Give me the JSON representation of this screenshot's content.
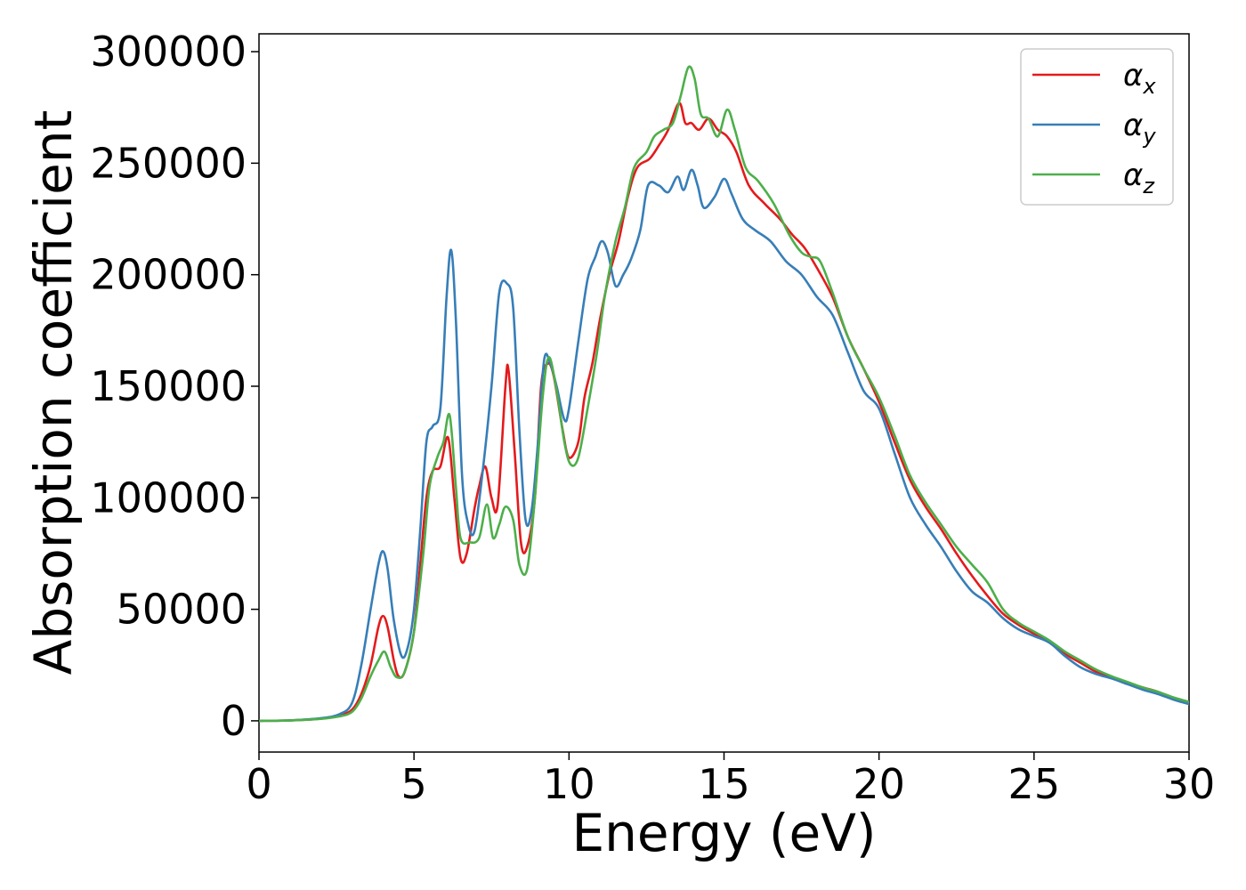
{
  "chart_data": {
    "type": "line",
    "title": "",
    "xlabel": "Energy (eV)",
    "ylabel": "Absorption coefficient",
    "xlim": [
      0,
      30
    ],
    "ylim": [
      -14000,
      308000
    ],
    "x_ticks": [
      0,
      5,
      10,
      15,
      20,
      25,
      30
    ],
    "y_ticks": [
      0,
      50000,
      100000,
      150000,
      200000,
      250000,
      300000
    ],
    "grid": false,
    "legend": "top-right",
    "series": [
      {
        "name": "αx",
        "symbol": "α",
        "subscript": "x",
        "color": "#e41a1c",
        "points": [
          [
            0,
            0
          ],
          [
            1,
            200
          ],
          [
            2,
            1000
          ],
          [
            2.6,
            2500
          ],
          [
            3.0,
            5000
          ],
          [
            3.3,
            12000
          ],
          [
            3.6,
            25000
          ],
          [
            3.85,
            42000
          ],
          [
            4.0,
            47000
          ],
          [
            4.15,
            42000
          ],
          [
            4.35,
            27000
          ],
          [
            4.5,
            20000
          ],
          [
            4.7,
            22000
          ],
          [
            5.0,
            40000
          ],
          [
            5.2,
            70000
          ],
          [
            5.4,
            100000
          ],
          [
            5.6,
            112000
          ],
          [
            5.85,
            114000
          ],
          [
            6.1,
            127000
          ],
          [
            6.3,
            100000
          ],
          [
            6.5,
            73000
          ],
          [
            6.7,
            75000
          ],
          [
            6.95,
            95000
          ],
          [
            7.1,
            105000
          ],
          [
            7.3,
            114000
          ],
          [
            7.5,
            100000
          ],
          [
            7.7,
            97000
          ],
          [
            7.95,
            150000
          ],
          [
            8.05,
            157000
          ],
          [
            8.25,
            120000
          ],
          [
            8.45,
            80000
          ],
          [
            8.65,
            78000
          ],
          [
            8.9,
            100000
          ],
          [
            9.1,
            150000
          ],
          [
            9.3,
            160000
          ],
          [
            9.5,
            155000
          ],
          [
            9.8,
            130000
          ],
          [
            10.0,
            118000
          ],
          [
            10.3,
            125000
          ],
          [
            10.5,
            145000
          ],
          [
            10.75,
            160000
          ],
          [
            11.0,
            180000
          ],
          [
            11.3,
            200000
          ],
          [
            11.6,
            215000
          ],
          [
            11.9,
            235000
          ],
          [
            12.2,
            248000
          ],
          [
            12.6,
            252000
          ],
          [
            12.9,
            258000
          ],
          [
            13.2,
            265000
          ],
          [
            13.55,
            277000
          ],
          [
            13.75,
            268000
          ],
          [
            13.95,
            268000
          ],
          [
            14.2,
            265000
          ],
          [
            14.5,
            270000
          ],
          [
            14.8,
            265000
          ],
          [
            15.1,
            262000
          ],
          [
            15.4,
            255000
          ],
          [
            15.8,
            240000
          ],
          [
            16.3,
            232000
          ],
          [
            16.8,
            225000
          ],
          [
            17.2,
            218000
          ],
          [
            17.6,
            212000
          ],
          [
            18.0,
            203000
          ],
          [
            18.5,
            190000
          ],
          [
            19.0,
            172000
          ],
          [
            19.5,
            158000
          ],
          [
            20.0,
            143000
          ],
          [
            20.5,
            125000
          ],
          [
            21.0,
            108000
          ],
          [
            21.5,
            96000
          ],
          [
            22.0,
            86000
          ],
          [
            22.5,
            75000
          ],
          [
            23.0,
            65000
          ],
          [
            23.5,
            56000
          ],
          [
            24.0,
            48000
          ],
          [
            24.5,
            43000
          ],
          [
            25.0,
            39000
          ],
          [
            25.5,
            35000
          ],
          [
            26.0,
            30000
          ],
          [
            26.5,
            26000
          ],
          [
            27.0,
            22000
          ],
          [
            27.5,
            19500
          ],
          [
            28.0,
            17000
          ],
          [
            28.5,
            15000
          ],
          [
            29.0,
            13000
          ],
          [
            29.5,
            10000
          ],
          [
            30.0,
            8000
          ]
        ]
      },
      {
        "name": "αy",
        "symbol": "α",
        "subscript": "y",
        "color": "#377eb8",
        "points": [
          [
            0,
            0
          ],
          [
            1,
            200
          ],
          [
            2,
            1200
          ],
          [
            2.6,
            3000
          ],
          [
            3.0,
            8000
          ],
          [
            3.3,
            25000
          ],
          [
            3.6,
            50000
          ],
          [
            3.85,
            70000
          ],
          [
            4.0,
            76000
          ],
          [
            4.15,
            68000
          ],
          [
            4.35,
            45000
          ],
          [
            4.6,
            29000
          ],
          [
            4.8,
            33000
          ],
          [
            5.0,
            50000
          ],
          [
            5.2,
            85000
          ],
          [
            5.4,
            125000
          ],
          [
            5.6,
            132000
          ],
          [
            5.85,
            140000
          ],
          [
            6.05,
            190000
          ],
          [
            6.2,
            211000
          ],
          [
            6.35,
            180000
          ],
          [
            6.55,
            110000
          ],
          [
            6.75,
            88000
          ],
          [
            6.95,
            85000
          ],
          [
            7.2,
            110000
          ],
          [
            7.5,
            150000
          ],
          [
            7.75,
            192000
          ],
          [
            8.0,
            196000
          ],
          [
            8.2,
            185000
          ],
          [
            8.4,
            130000
          ],
          [
            8.6,
            90000
          ],
          [
            8.8,
            95000
          ],
          [
            9.0,
            125000
          ],
          [
            9.2,
            162000
          ],
          [
            9.4,
            160000
          ],
          [
            9.6,
            150000
          ],
          [
            9.85,
            135000
          ],
          [
            10.0,
            140000
          ],
          [
            10.3,
            170000
          ],
          [
            10.6,
            198000
          ],
          [
            10.85,
            208000
          ],
          [
            11.05,
            215000
          ],
          [
            11.25,
            210000
          ],
          [
            11.5,
            195000
          ],
          [
            11.75,
            200000
          ],
          [
            12.0,
            207000
          ],
          [
            12.3,
            220000
          ],
          [
            12.55,
            240000
          ],
          [
            12.9,
            240000
          ],
          [
            13.2,
            237000
          ],
          [
            13.5,
            244000
          ],
          [
            13.7,
            238000
          ],
          [
            13.95,
            247000
          ],
          [
            14.15,
            240000
          ],
          [
            14.35,
            230000
          ],
          [
            14.7,
            235000
          ],
          [
            15.0,
            243000
          ],
          [
            15.25,
            236000
          ],
          [
            15.6,
            225000
          ],
          [
            16.0,
            220000
          ],
          [
            16.5,
            215000
          ],
          [
            17.0,
            206000
          ],
          [
            17.5,
            200000
          ],
          [
            18.0,
            190000
          ],
          [
            18.5,
            182000
          ],
          [
            19.0,
            165000
          ],
          [
            19.5,
            148000
          ],
          [
            20.0,
            140000
          ],
          [
            20.5,
            120000
          ],
          [
            21.0,
            100000
          ],
          [
            21.5,
            88000
          ],
          [
            22.0,
            78000
          ],
          [
            22.5,
            67000
          ],
          [
            23.0,
            58000
          ],
          [
            23.5,
            53000
          ],
          [
            24.0,
            46000
          ],
          [
            24.5,
            41000
          ],
          [
            25.0,
            38000
          ],
          [
            25.5,
            35000
          ],
          [
            26.0,
            29000
          ],
          [
            26.5,
            24000
          ],
          [
            27.0,
            21000
          ],
          [
            27.5,
            19000
          ],
          [
            28.0,
            16500
          ],
          [
            28.5,
            14000
          ],
          [
            29.0,
            12000
          ],
          [
            29.5,
            9500
          ],
          [
            30.0,
            7500
          ]
        ]
      },
      {
        "name": "αz",
        "symbol": "α",
        "subscript": "z",
        "color": "#4daf4a",
        "points": [
          [
            0,
            0
          ],
          [
            1,
            200
          ],
          [
            2,
            900
          ],
          [
            2.6,
            2000
          ],
          [
            3.0,
            4000
          ],
          [
            3.3,
            10000
          ],
          [
            3.6,
            20000
          ],
          [
            3.85,
            27000
          ],
          [
            4.05,
            31000
          ],
          [
            4.25,
            24000
          ],
          [
            4.45,
            19500
          ],
          [
            4.7,
            22000
          ],
          [
            5.0,
            40000
          ],
          [
            5.3,
            75000
          ],
          [
            5.5,
            105000
          ],
          [
            5.75,
            118000
          ],
          [
            5.95,
            125000
          ],
          [
            6.15,
            137000
          ],
          [
            6.35,
            105000
          ],
          [
            6.5,
            82000
          ],
          [
            6.8,
            80000
          ],
          [
            7.1,
            82000
          ],
          [
            7.35,
            97000
          ],
          [
            7.55,
            82000
          ],
          [
            7.75,
            88000
          ],
          [
            7.95,
            96000
          ],
          [
            8.2,
            90000
          ],
          [
            8.4,
            70000
          ],
          [
            8.65,
            68000
          ],
          [
            8.9,
            100000
          ],
          [
            9.15,
            145000
          ],
          [
            9.35,
            163000
          ],
          [
            9.6,
            148000
          ],
          [
            9.85,
            125000
          ],
          [
            10.05,
            115000
          ],
          [
            10.3,
            118000
          ],
          [
            10.6,
            140000
          ],
          [
            10.9,
            165000
          ],
          [
            11.15,
            190000
          ],
          [
            11.5,
            215000
          ],
          [
            11.8,
            230000
          ],
          [
            12.1,
            248000
          ],
          [
            12.5,
            255000
          ],
          [
            12.75,
            262000
          ],
          [
            13.05,
            265000
          ],
          [
            13.35,
            268000
          ],
          [
            13.6,
            280000
          ],
          [
            13.85,
            293000
          ],
          [
            14.05,
            288000
          ],
          [
            14.25,
            272000
          ],
          [
            14.5,
            270000
          ],
          [
            14.8,
            262000
          ],
          [
            15.1,
            274000
          ],
          [
            15.35,
            265000
          ],
          [
            15.7,
            248000
          ],
          [
            16.1,
            242000
          ],
          [
            16.6,
            232000
          ],
          [
            17.1,
            218000
          ],
          [
            17.5,
            210000
          ],
          [
            17.8,
            208000
          ],
          [
            18.1,
            206000
          ],
          [
            18.5,
            192000
          ],
          [
            19.0,
            172000
          ],
          [
            19.5,
            158000
          ],
          [
            20.0,
            145000
          ],
          [
            20.5,
            128000
          ],
          [
            21.0,
            110000
          ],
          [
            21.5,
            98000
          ],
          [
            22.0,
            88000
          ],
          [
            22.5,
            78000
          ],
          [
            23.0,
            70000
          ],
          [
            23.5,
            62000
          ],
          [
            24.0,
            50000
          ],
          [
            24.5,
            44000
          ],
          [
            25.0,
            40000
          ],
          [
            25.5,
            36000
          ],
          [
            26.0,
            31000
          ],
          [
            26.5,
            27000
          ],
          [
            27.0,
            23000
          ],
          [
            27.5,
            20000
          ],
          [
            28.0,
            17500
          ],
          [
            28.5,
            15000
          ],
          [
            29.0,
            13000
          ],
          [
            29.5,
            10500
          ],
          [
            30.0,
            8500
          ]
        ]
      }
    ]
  }
}
